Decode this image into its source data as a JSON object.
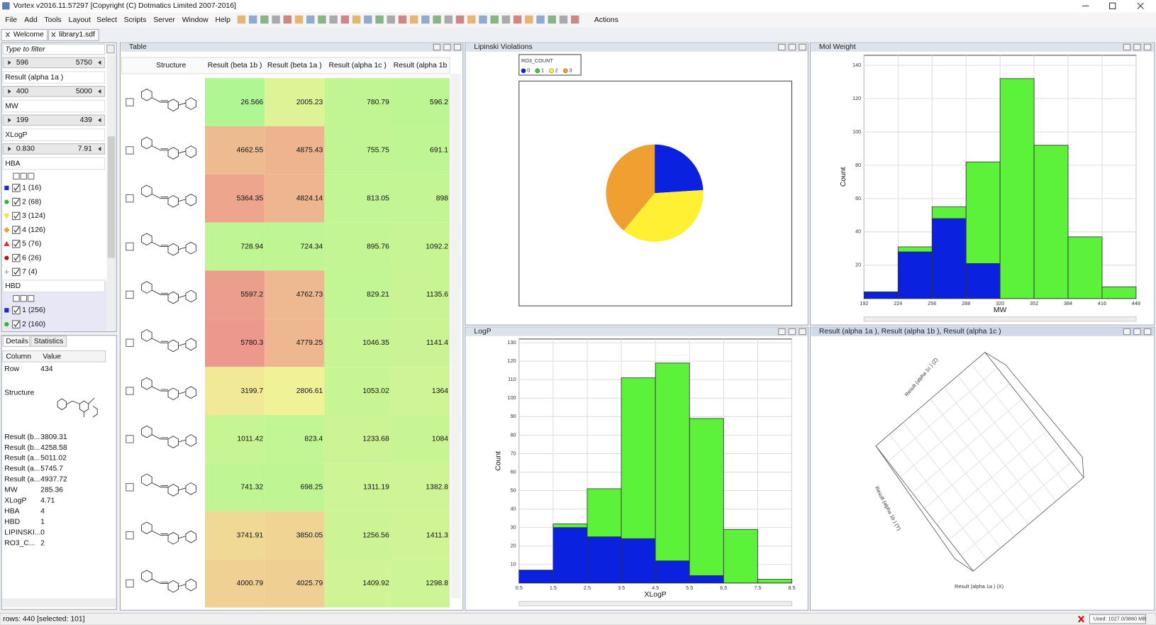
{
  "window": {
    "title": "Vortex v2016.11.57297 [Copyright (C) Dotmatics Limited 2007-2016]"
  },
  "menu": [
    "File",
    "Add",
    "Tools",
    "Layout",
    "Select",
    "Scripts",
    "Server",
    "Window",
    "Help"
  ],
  "toolbar_label": "Actions",
  "tabs": [
    "Welcome",
    "library1.sdf"
  ],
  "filter_panel": {
    "placeholder": "Type to filter",
    "filters": [
      {
        "range": [
          "596",
          "5750"
        ]
      },
      {
        "label": "Result (alpha 1a )",
        "range": [
          "400",
          "5000"
        ]
      },
      {
        "label": "MW",
        "range": [
          "199",
          "439"
        ]
      },
      {
        "label": "XLogP",
        "range": [
          "0.830",
          "7.91"
        ]
      },
      {
        "label": "HBA",
        "items": [
          {
            "text": "1 (16)",
            "color": "#1a2bd0",
            "shape": "square"
          },
          {
            "text": "2 (68)",
            "color": "#2db82d",
            "shape": "circle"
          },
          {
            "text": "3 (124)",
            "color": "#f2e23a",
            "shape": "triangle-down"
          },
          {
            "text": "4 (126)",
            "color": "#f0a030",
            "shape": "diamond"
          },
          {
            "text": "5 (76)",
            "color": "#e03030",
            "shape": "triangle"
          },
          {
            "text": "6 (26)",
            "color": "#a02020",
            "shape": "circle"
          },
          {
            "text": "7 (4)",
            "color": "#999999",
            "shape": "plus"
          }
        ]
      },
      {
        "label": "HBD",
        "items": [
          {
            "text": "1 (256)",
            "color": "#1a2bd0",
            "shape": "square"
          },
          {
            "text": "2 (160)",
            "color": "#2db82d",
            "shape": "circle"
          }
        ]
      }
    ]
  },
  "details": {
    "tabs": [
      "Details",
      "Statistics"
    ],
    "headers": [
      "Column",
      "Value"
    ],
    "rows": [
      [
        "Row",
        "434"
      ],
      [
        "Structure"
      ],
      [
        "Result (b...",
        "3809.31"
      ],
      [
        "Result (b...",
        "4258.58"
      ],
      [
        "Result (a...",
        "5011.02"
      ],
      [
        "Result (a...",
        "5745.7"
      ],
      [
        "Result (a...",
        "4937.72"
      ],
      [
        "MW",
        "285.36"
      ],
      [
        "XLogP",
        "4.71"
      ],
      [
        "HBA",
        "4"
      ],
      [
        "HBD",
        "1"
      ],
      [
        "LIPINSKI...",
        "0"
      ],
      [
        "RO3_C...",
        "2"
      ]
    ]
  },
  "table": {
    "title": "Table",
    "headers": [
      "Structure",
      "Result (beta 1b )",
      "Result (beta 1a )",
      "Result (alpha 1c )",
      "Result (alpha 1b"
    ],
    "rows": [
      [
        26.566,
        2005.23,
        780.79,
        "596.2"
      ],
      [
        4662.55,
        4875.43,
        755.75,
        "691.1"
      ],
      [
        5364.35,
        4824.14,
        813.05,
        "898"
      ],
      [
        728.94,
        724.34,
        895.76,
        "1092.2"
      ],
      [
        5597.2,
        4762.73,
        829.21,
        "1135.6"
      ],
      [
        5780.3,
        4779.25,
        1046.35,
        "1141.4"
      ],
      [
        3199.7,
        2806.61,
        1053.02,
        "1364"
      ],
      [
        1011.42,
        823.4,
        1233.68,
        "1084"
      ],
      [
        741.32,
        698.25,
        1311.19,
        "1382.8"
      ],
      [
        3741.91,
        3850.05,
        1256.56,
        "1411.3"
      ],
      [
        4000.79,
        4025.79,
        1409.92,
        "1298.8"
      ]
    ]
  },
  "chart_data": [
    {
      "type": "pie",
      "title": "Lipinski Violations",
      "legend_title": "RO3_COUNT",
      "categories": [
        "0",
        "1",
        "2",
        "3"
      ],
      "values": [
        24,
        0,
        37,
        39
      ],
      "colors": [
        "#0a22e0",
        "#33cc33",
        "#fff033",
        "#f0a030"
      ]
    },
    {
      "type": "histogram",
      "title": "Mol Weight",
      "x_label": "MW",
      "y_label": "Count",
      "bins": [
        192,
        224,
        256,
        288,
        320,
        352,
        384,
        416,
        448
      ],
      "series": [
        {
          "color": "#0a22e0",
          "values": [
            4,
            28,
            48,
            21,
            0,
            0,
            0,
            0
          ]
        },
        {
          "color": "#5cf23a",
          "values": [
            0,
            3,
            7,
            61,
            132,
            92,
            37,
            7
          ]
        }
      ],
      "ylim": [
        0,
        146
      ],
      "yticks": [
        20,
        40,
        60,
        80,
        100,
        120,
        140
      ],
      "xticks": [
        192,
        224,
        256,
        288,
        320,
        352,
        384,
        416,
        448
      ],
      "grid": true
    },
    {
      "type": "histogram",
      "title": "LogP",
      "x_label": "XLogP",
      "y_label": "Count",
      "bins": [
        0.5,
        1.5,
        2.5,
        3.5,
        4.5,
        5.5,
        6.5,
        7.5,
        8.5
      ],
      "series": [
        {
          "color": "#0a22e0",
          "values": [
            7,
            30,
            25,
            24,
            12,
            4,
            0,
            0
          ]
        },
        {
          "color": "#5cf23a",
          "values": [
            0,
            2,
            26,
            87,
            107,
            85,
            29,
            2
          ]
        }
      ],
      "ylim": [
        0,
        132
      ],
      "yticks": [
        10,
        20,
        30,
        40,
        50,
        60,
        70,
        80,
        90,
        100,
        110,
        120,
        130
      ],
      "xticks": [
        0.5,
        1.5,
        2.5,
        3.5,
        4.5,
        5.5,
        6.5,
        7.5,
        8.5
      ],
      "grid": true
    },
    {
      "type": "scatter3d",
      "title": "Result (alpha 1a ), Result (alpha 1b ), Result (alpha 1c )",
      "axis_labels": [
        "Result (alpha 1a ) (X)",
        "Result (alpha 1b ) (Y)",
        "Result (alpha 1c ) (Z)"
      ]
    }
  ],
  "status": {
    "rows": "rows: 440 [selected: 101]",
    "memory": "Used: 1027.0/3860 MB"
  }
}
